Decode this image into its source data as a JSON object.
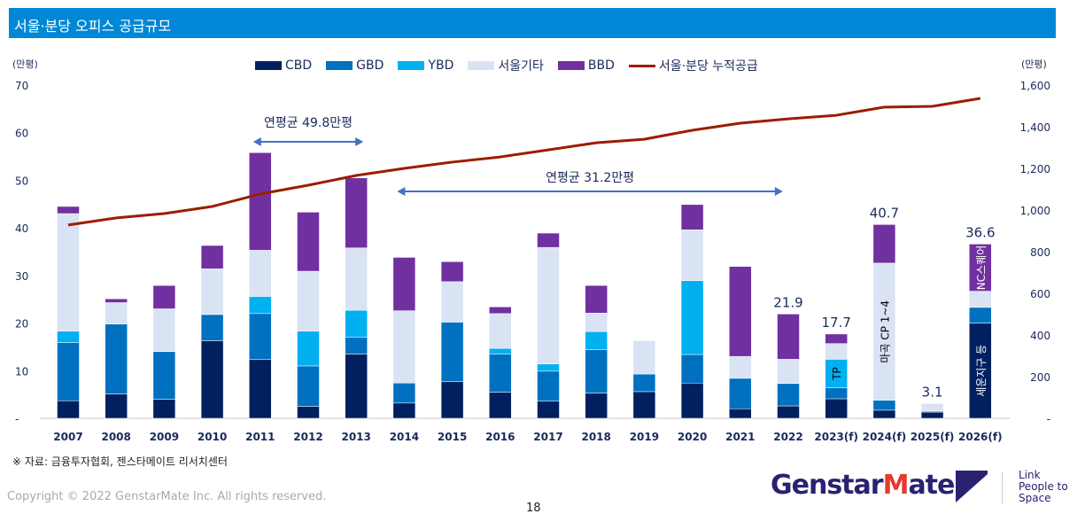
{
  "header": {
    "title": "서울·분당 오피스 공급규모"
  },
  "chart_data": {
    "type": "bar",
    "stacked": true,
    "title": "",
    "categories": [
      "2007",
      "2008",
      "2009",
      "2010",
      "2011",
      "2012",
      "2013",
      "2014",
      "2015",
      "2016",
      "2017",
      "2018",
      "2019",
      "2020",
      "2021",
      "2022",
      "2023(f)",
      "2024(f)",
      "2025(f)",
      "2026(f)"
    ],
    "left_axis": {
      "unit": "(만평)",
      "ylim": [
        0,
        70
      ],
      "ticks": [
        "-",
        "10",
        "20",
        "30",
        "40",
        "50",
        "60",
        "70"
      ]
    },
    "right_axis": {
      "unit": "(만평)",
      "ylim": [
        0,
        1600
      ],
      "ticks": [
        "-",
        "200",
        "400",
        "600",
        "800",
        "1,000",
        "1,200",
        "1,400",
        "1,600"
      ]
    },
    "series": [
      {
        "name": "CBD",
        "color": "#002060",
        "values": [
          3.7,
          5.1,
          4.0,
          16.3,
          12.4,
          2.5,
          13.5,
          3.2,
          7.7,
          5.5,
          3.6,
          5.3,
          5.6,
          7.4,
          2.0,
          2.6,
          4.1,
          1.7,
          1.3,
          20.0
        ]
      },
      {
        "name": "GBD",
        "color": "#0070c0",
        "values": [
          12.2,
          14.7,
          10.0,
          5.5,
          9.6,
          8.5,
          3.5,
          4.2,
          12.5,
          8.0,
          6.3,
          9.1,
          3.7,
          6.0,
          6.4,
          4.7,
          2.3,
          2.1,
          0.2,
          3.3
        ]
      },
      {
        "name": "YBD",
        "color": "#00b0f0",
        "values": [
          2.4,
          0,
          0,
          0,
          3.6,
          7.3,
          5.7,
          0,
          0,
          1.2,
          1.5,
          3.8,
          0,
          15.5,
          0,
          0,
          6.0,
          0,
          0,
          0
        ]
      },
      {
        "name": "서울기타",
        "color": "#dae3f3",
        "values": [
          24.7,
          4.5,
          9.0,
          9.6,
          9.7,
          12.6,
          13.1,
          15.2,
          8.5,
          7.3,
          24.5,
          3.9,
          7.0,
          10.7,
          4.6,
          5.1,
          3.3,
          28.8,
          1.6,
          3.4
        ]
      },
      {
        "name": "BBD",
        "color": "#7030a0",
        "values": [
          1.5,
          0.8,
          4.9,
          4.9,
          20.5,
          12.4,
          14.7,
          11.2,
          4.2,
          1.4,
          3.0,
          5.8,
          0,
          5.3,
          18.9,
          9.5,
          2.0,
          8.1,
          0,
          9.9
        ]
      }
    ],
    "line": {
      "name": "서울·분당 누적공급",
      "color": "#9c1c00",
      "axis": "right",
      "values": [
        928,
        962,
        983,
        1017,
        1077,
        1119,
        1166,
        1200,
        1230,
        1255,
        1289,
        1323,
        1340,
        1383,
        1417,
        1438,
        1455,
        1494,
        1498,
        1536
      ]
    },
    "total_labels": [
      {
        "category": "2022",
        "text": "21.9"
      },
      {
        "category": "2023(f)",
        "text": "17.7"
      },
      {
        "category": "2024(f)",
        "text": "40.7"
      },
      {
        "category": "2025(f)",
        "text": "3.1"
      },
      {
        "category": "2026(f)",
        "text": "36.6"
      }
    ],
    "bar_annotations": [
      {
        "category": "2023(f)",
        "series": "YBD",
        "text": "TP",
        "color": "#000000"
      },
      {
        "category": "2024(f)",
        "series": "서울기타",
        "text": "마곡 CP 1~4",
        "color": "#000000"
      },
      {
        "category": "2026(f)",
        "series": "BBD",
        "text": "NC스퀘어",
        "color": "#ffffff"
      },
      {
        "category": "2026(f)",
        "series": "CBD",
        "text": "세운지구 등",
        "color": "#ffffff"
      }
    ],
    "range_annotations": [
      {
        "from": "2011",
        "to": "2013",
        "text": "연평균 49.8만평"
      },
      {
        "from": "2014",
        "to": "2021",
        "text": "연평균 31.2만평"
      }
    ],
    "legend": "top"
  },
  "footer": {
    "source": "※ 자료: 금융투자협회, 젠스타메이트 리서치센터",
    "copyright": "Copyright © 2022  GenstarMate Inc. All rights reserved.",
    "page": "18",
    "logo": "GenstarMate",
    "tagline": [
      "Link",
      "People to",
      "Space"
    ]
  }
}
